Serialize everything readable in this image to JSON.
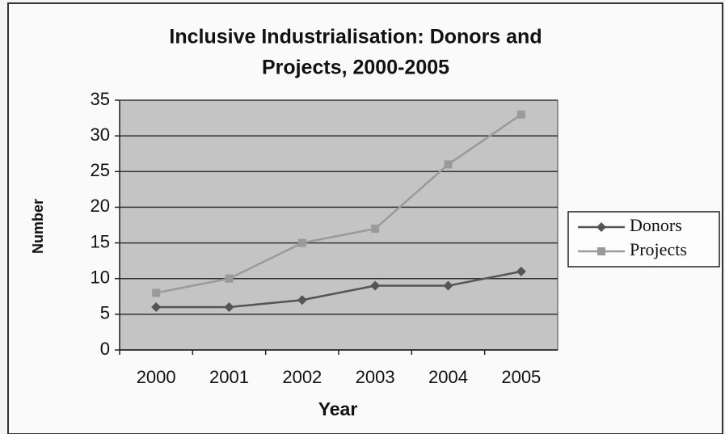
{
  "chart_data": {
    "type": "line",
    "title": [
      "Inclusive Industrialisation: Donors and",
      "Projects, 2000-2005"
    ],
    "x_label": "Year",
    "y_label": "Number",
    "categories": [
      "2000",
      "2001",
      "2002",
      "2003",
      "2004",
      "2005"
    ],
    "series": [
      {
        "name": "Donors",
        "color": "#555555",
        "marker": "diamond",
        "values": [
          6,
          6,
          7,
          9,
          9,
          11
        ]
      },
      {
        "name": "Projects",
        "color": "#9a9a9a",
        "marker": "square",
        "values": [
          8,
          10,
          15,
          17,
          26,
          33
        ]
      }
    ],
    "ylim": [
      0,
      35
    ],
    "yticks": [
      0,
      5,
      10,
      15,
      20,
      25,
      30,
      35
    ],
    "grid": true,
    "legend": "right"
  }
}
